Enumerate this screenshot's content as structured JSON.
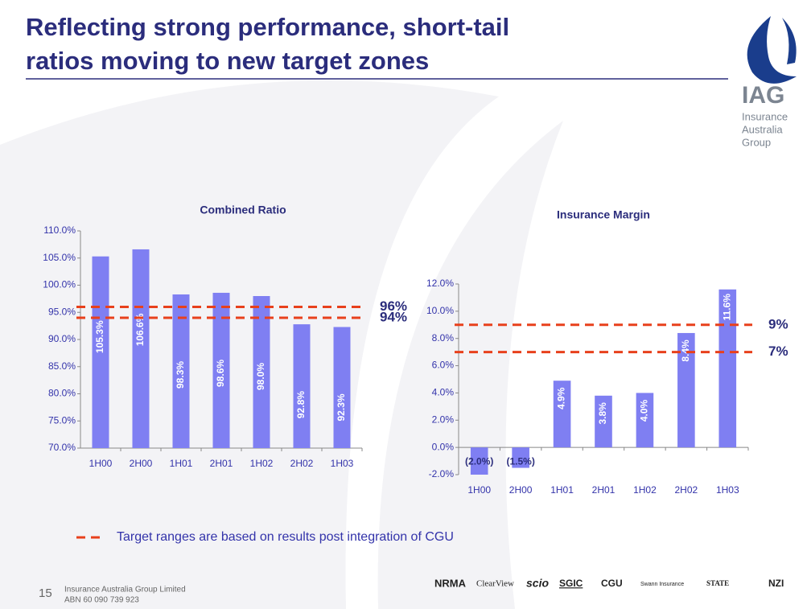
{
  "slide": {
    "title": [
      "Reflecting strong performance, short-tail",
      "ratios moving to new target zones"
    ],
    "logo": {
      "mark": "IAG",
      "lines": [
        "Insurance",
        "Australia",
        "Group"
      ]
    },
    "note": "Target ranges are based on results post integration of CGU",
    "page_number": "15",
    "company": "Insurance Australia Group Limited",
    "abn": "ABN 60 090 739 923",
    "brands": [
      "NRMA",
      "ClearView",
      "scio",
      "SGIC",
      "CGU",
      "Swann Insurance",
      "STATE",
      "NZI"
    ]
  },
  "chart_data": [
    {
      "type": "bar",
      "title": "Combined Ratio",
      "categories": [
        "1H00",
        "2H00",
        "1H01",
        "2H01",
        "1H02",
        "2H02",
        "1H03"
      ],
      "values": [
        105.3,
        106.6,
        98.3,
        98.6,
        98.0,
        92.8,
        92.3
      ],
      "value_labels": [
        "105.3%",
        "106.6%",
        "98.3%",
        "98.6%",
        "98.0%",
        "92.8%",
        "92.3%"
      ],
      "color": "#7f7ff2",
      "ylim": [
        70,
        110
      ],
      "yticks": [
        {
          "value": 70,
          "label": "70.0%"
        },
        {
          "value": 75,
          "label": "75.0%"
        },
        {
          "value": 80,
          "label": "80.0%"
        },
        {
          "value": 85,
          "label": "85.0%"
        },
        {
          "value": 90,
          "label": "90.0%"
        },
        {
          "value": 95,
          "label": "95.0%"
        },
        {
          "value": 100,
          "label": "100.0%"
        },
        {
          "value": 105,
          "label": "105.0%"
        },
        {
          "value": 110,
          "label": "110.0%"
        }
      ],
      "target_lines": [
        {
          "value": 96,
          "label": "96%"
        },
        {
          "value": 94,
          "label": "94%"
        }
      ],
      "target_color": "#e8401c"
    },
    {
      "type": "bar",
      "title": "Insurance Margin",
      "categories": [
        "1H00",
        "2H00",
        "1H01",
        "2H01",
        "1H02",
        "2H02",
        "1H03"
      ],
      "values": [
        -2.0,
        -1.5,
        4.9,
        3.8,
        4.0,
        8.4,
        11.6
      ],
      "value_labels": [
        "(2.0%)",
        "(1.5%)",
        "4.9%",
        "3.8%",
        "4.0%",
        "8.4%",
        "11.6%"
      ],
      "color": "#7f7ff2",
      "ylim": [
        -2,
        12
      ],
      "yticks": [
        {
          "value": -2,
          "label": "-2.0%"
        },
        {
          "value": 0,
          "label": "0.0%"
        },
        {
          "value": 2,
          "label": "2.0%"
        },
        {
          "value": 4,
          "label": "4.0%"
        },
        {
          "value": 6,
          "label": "6.0%"
        },
        {
          "value": 8,
          "label": "8.0%"
        },
        {
          "value": 10,
          "label": "10.0%"
        },
        {
          "value": 12,
          "label": "12.0%"
        }
      ],
      "target_lines": [
        {
          "value": 9,
          "label": "9%"
        },
        {
          "value": 7,
          "label": "7%"
        }
      ],
      "target_color": "#e8401c"
    }
  ]
}
